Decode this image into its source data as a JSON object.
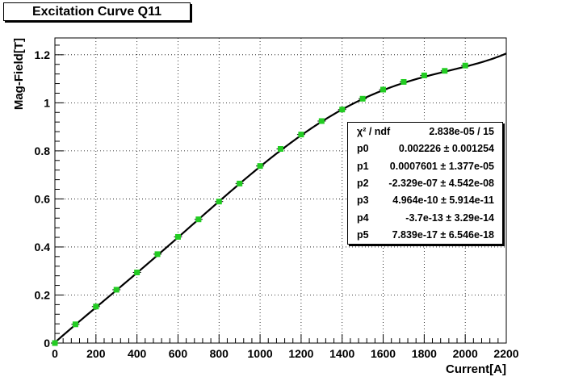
{
  "title": "Excitation Curve Q11",
  "chart_data": {
    "type": "scatter",
    "xlabel": "Current[A]",
    "ylabel": "Mag-Field[T]",
    "xlim": [
      0,
      2200
    ],
    "ylim": [
      0,
      1.27
    ],
    "xticks": [
      0,
      200,
      400,
      600,
      800,
      1000,
      1200,
      1400,
      1600,
      1800,
      2000,
      2200
    ],
    "yticks": [
      0,
      0.2,
      0.4,
      0.6,
      0.8,
      1,
      1.2
    ],
    "x_tick_labels": [
      "0",
      "200",
      "400",
      "600",
      "800",
      "1000",
      "1200",
      "1400",
      "1600",
      "1800",
      "2000",
      "2200"
    ],
    "y_tick_labels": [
      "0",
      "0.2",
      "0.4",
      "0.6",
      "0.8",
      "1",
      "1.2"
    ],
    "grid": true,
    "marker_color": "#22cc22",
    "line_color": "#000000",
    "points": {
      "x": [
        0,
        100,
        200,
        300,
        400,
        500,
        600,
        700,
        800,
        900,
        1000,
        1100,
        1200,
        1300,
        1400,
        1500,
        1600,
        1700,
        1800,
        1900,
        2000
      ],
      "y": [
        0.0,
        0.078,
        0.152,
        0.222,
        0.294,
        0.37,
        0.442,
        0.515,
        0.589,
        0.664,
        0.737,
        0.808,
        0.868,
        0.924,
        0.972,
        1.017,
        1.055,
        1.087,
        1.114,
        1.133,
        1.155
      ]
    },
    "fit": {
      "type": "pol5",
      "x_range": [
        0,
        2200
      ],
      "coefficients": [
        0.002226,
        0.0007601,
        -2.329e-07,
        4.964e-10,
        -3.7e-13,
        7.839e-17
      ]
    },
    "stats": [
      {
        "name": "χ² / ndf",
        "value": "2.838e-05 / 15"
      },
      {
        "name": "p0",
        "value": "0.002226 ± 0.001254"
      },
      {
        "name": "p1",
        "value": "0.0007601 ± 1.377e-05"
      },
      {
        "name": "p2",
        "value": "-2.329e-07 ± 4.542e-08"
      },
      {
        "name": "p3",
        "value": "4.964e-10 ± 5.914e-11"
      },
      {
        "name": "p4",
        "value": "-3.7e-13 ± 3.29e-14"
      },
      {
        "name": "p5",
        "value": "7.839e-17 ± 6.546e-18"
      }
    ]
  }
}
